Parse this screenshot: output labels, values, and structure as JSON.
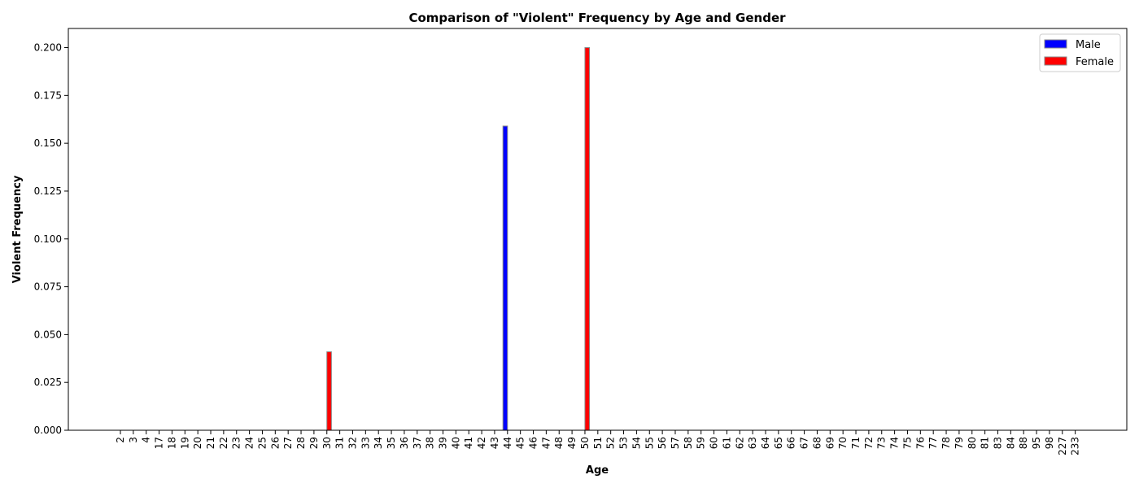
{
  "chart_data": {
    "type": "bar",
    "title": "Comparison of \"Violent\" Frequency by Age and Gender",
    "xlabel": "Age",
    "ylabel": "Violent Frequency",
    "categories": [
      "2",
      "3",
      "4",
      "17",
      "18",
      "19",
      "20",
      "21",
      "22",
      "23",
      "24",
      "25",
      "26",
      "27",
      "28",
      "29",
      "30",
      "31",
      "32",
      "33",
      "34",
      "35",
      "36",
      "37",
      "38",
      "39",
      "40",
      "41",
      "42",
      "43",
      "44",
      "45",
      "46",
      "47",
      "48",
      "49",
      "50",
      "51",
      "52",
      "53",
      "54",
      "55",
      "56",
      "57",
      "58",
      "59",
      "60",
      "61",
      "62",
      "63",
      "64",
      "65",
      "66",
      "67",
      "68",
      "69",
      "70",
      "71",
      "72",
      "73",
      "74",
      "75",
      "76",
      "77",
      "78",
      "79",
      "80",
      "81",
      "83",
      "84",
      "88",
      "95",
      "98",
      "227",
      "233"
    ],
    "series": [
      {
        "name": "Male",
        "color": "#0000ff",
        "values": {
          "44": 0.159
        }
      },
      {
        "name": "Female",
        "color": "#ff0000",
        "values": {
          "30": 0.041,
          "50": 0.2
        }
      }
    ],
    "ylim": [
      0,
      0.21
    ],
    "yticks": [
      "0.000",
      "0.025",
      "0.050",
      "0.075",
      "0.100",
      "0.125",
      "0.150",
      "0.175",
      "0.200"
    ],
    "legend_position": "top-right",
    "grid": false
  }
}
